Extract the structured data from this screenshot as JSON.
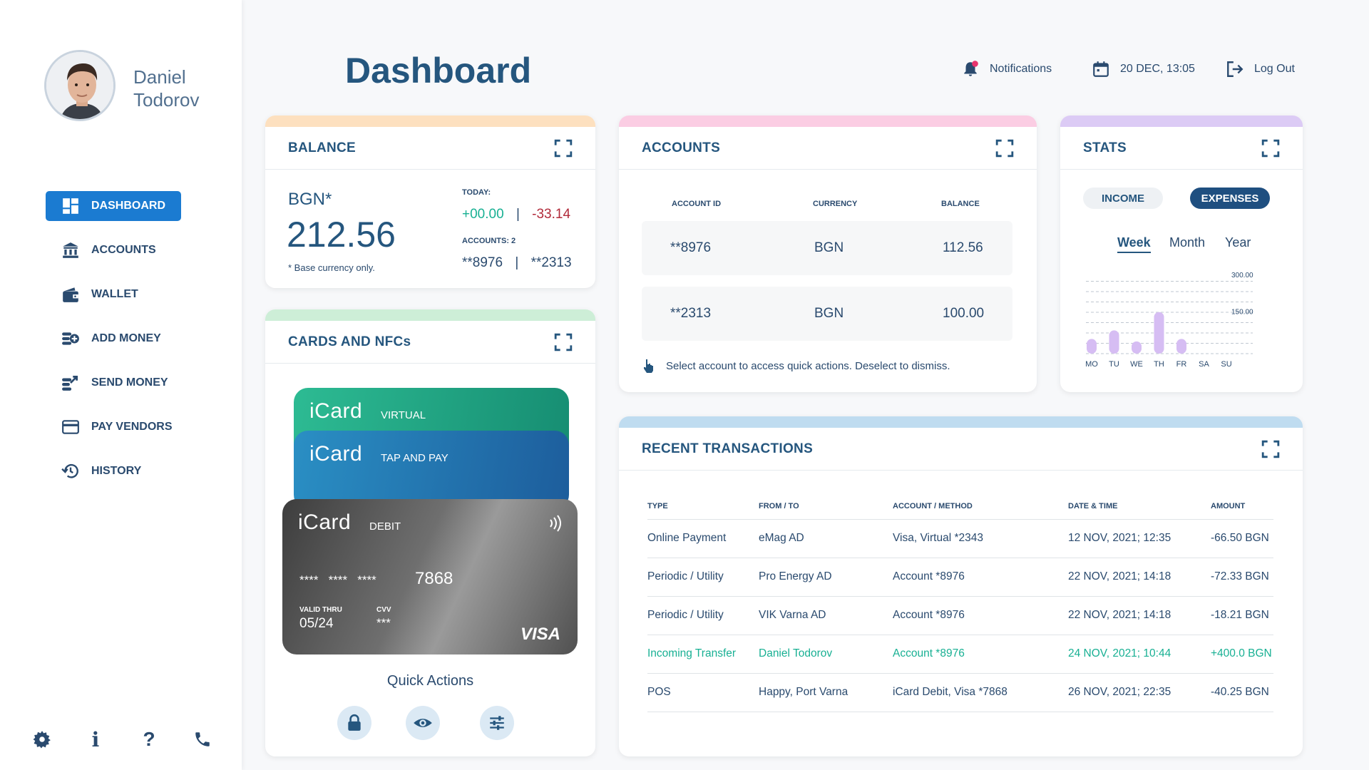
{
  "user": {
    "first_name": "Daniel",
    "last_name": "Todorov"
  },
  "sidebar": {
    "items": [
      {
        "label": "DASHBOARD",
        "icon": "dashboard-icon",
        "active": true
      },
      {
        "label": "ACCOUNTS",
        "icon": "bank-icon"
      },
      {
        "label": "WALLET",
        "icon": "wallet-icon"
      },
      {
        "label": "ADD MONEY",
        "icon": "add-money-icon"
      },
      {
        "label": "SEND MONEY",
        "icon": "send-money-icon"
      },
      {
        "label": "PAY VENDORS",
        "icon": "credit-card-icon"
      },
      {
        "label": "HISTORY",
        "icon": "history-icon"
      }
    ],
    "bottom": {
      "info": "i",
      "help": "?"
    }
  },
  "header": {
    "title": "Dashboard",
    "notifications": "Notifications",
    "datetime": "20 DEC, 13:05",
    "logout": "Log Out"
  },
  "balance": {
    "title": "BALANCE",
    "currency": "BGN*",
    "amount": "212.56",
    "note": "* Base currency only.",
    "today_label": "TODAY:",
    "today_in": "+00.00",
    "today_out": "-33.14",
    "accounts_label": "ACCOUNTS: 2",
    "account_1": "**8976",
    "account_2": "**2313",
    "separator": "|"
  },
  "accounts": {
    "title": "ACCOUNTS",
    "columns": [
      "ACCOUNT ID",
      "CURRENCY",
      "BALANCE"
    ],
    "rows": [
      {
        "id": "**8976",
        "currency": "BGN",
        "balance": "112.56"
      },
      {
        "id": "**2313",
        "currency": "BGN",
        "balance": "100.00"
      }
    ],
    "hint": "Select account to access quick actions. Deselect to dismiss."
  },
  "stats": {
    "title": "STATS",
    "tabs": [
      "INCOME",
      "EXPENSES"
    ],
    "active_tab": "EXPENSES",
    "periods": [
      "Week",
      "Month",
      "Year"
    ],
    "active_period": "Week",
    "chart_data": {
      "type": "bar",
      "categories": [
        "MO",
        "TU",
        "WE",
        "TH",
        "FR",
        "SA",
        "SU"
      ],
      "values": [
        60,
        95,
        50,
        170,
        60,
        0,
        0
      ],
      "ylim": [
        0,
        350
      ],
      "yticks": [
        "300.00",
        "150.00"
      ],
      "grid": true,
      "color": "#d6bdf3"
    }
  },
  "cards": {
    "title": "CARDS AND NFCs",
    "items": [
      {
        "brand": "iCard",
        "kind": "VIRTUAL",
        "color": "#1aa583"
      },
      {
        "brand": "iCard",
        "kind": "TAP AND PAY",
        "color": "#1f6aa6"
      },
      {
        "brand": "iCard",
        "kind": "DEBIT",
        "number_mask": "****   ****   ****",
        "last4": "7868",
        "valid_label": "VALID THRU",
        "valid": "05/24",
        "cvv_label": "CVV",
        "cvv": "***",
        "network": "VISA"
      }
    ],
    "quick_actions": "Quick Actions"
  },
  "transactions": {
    "title": "RECENT TRANSACTIONS",
    "columns": [
      "TYPE",
      "FROM / TO",
      "ACCOUNT / METHOD",
      "DATE & TIME",
      "AMOUNT"
    ],
    "rows": [
      {
        "type": "Online Payment",
        "party": "eMag AD",
        "method": "Visa, Virtual *2343",
        "date": "12 NOV, 2021; 12:35",
        "amount": "-66.50 BGN"
      },
      {
        "type": "Periodic / Utility",
        "party": "Pro Energy AD",
        "method": "Account *8976",
        "date": "22 NOV, 2021; 14:18",
        "amount": "-72.33 BGN"
      },
      {
        "type": "Periodic / Utility",
        "party": "VIK Varna AD",
        "method": "Account *8976",
        "date": "22 NOV, 2021; 14:18",
        "amount": "-18.21 BGN"
      },
      {
        "type": "Incoming Transfer",
        "party": "Daniel Todorov",
        "method": "Account *8976",
        "date": "24 NOV, 2021; 10:44",
        "amount": "+400.0 BGN",
        "incoming": true
      },
      {
        "type": "POS",
        "party": "Happy, Port Varna",
        "method": "iCard Debit, Visa *7868",
        "date": "26 NOV, 2021; 22:35",
        "amount": "-40.25 BGN"
      }
    ]
  },
  "colors": {
    "primary": "#1b7bd1",
    "title": "#25567e",
    "positive": "#18b093",
    "negative": "#b12a3a",
    "balance_bar": "#fde0bf",
    "accounts_bar": "#fbcde3",
    "stats_bar": "#dccbf5",
    "cards_bar": "#cdeed7",
    "tx_bar": "#bfdcf0"
  }
}
